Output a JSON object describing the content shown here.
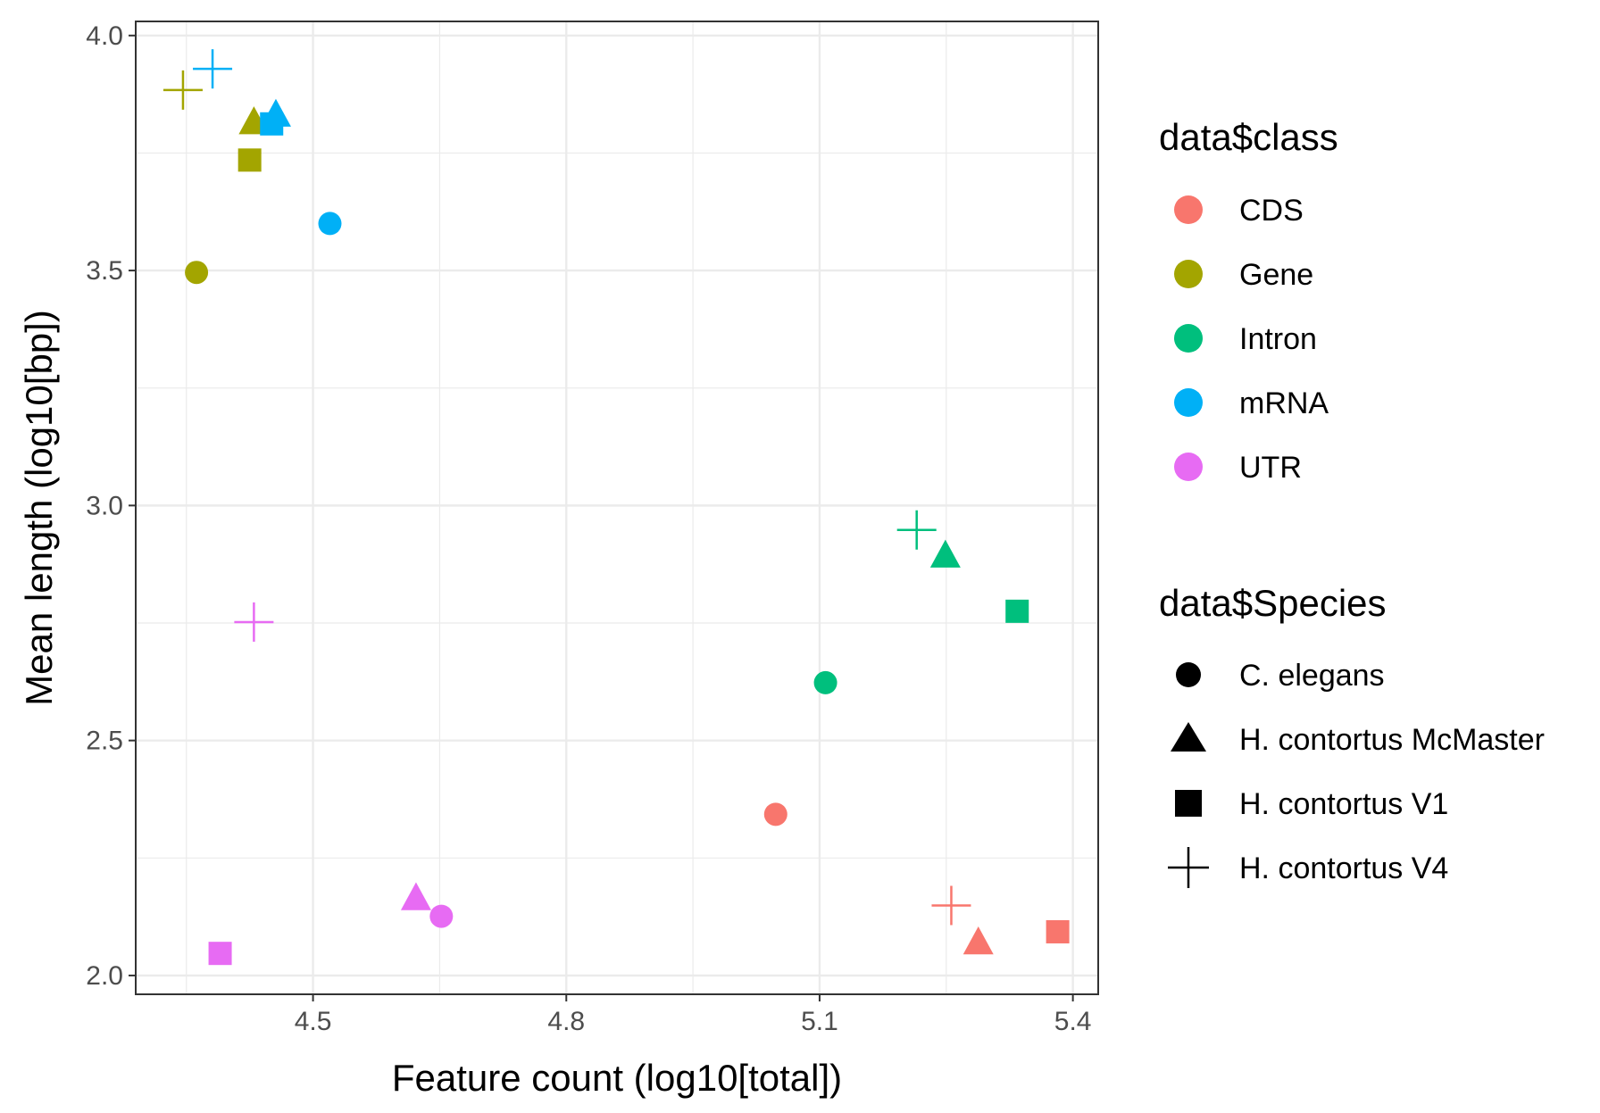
{
  "chart_data": {
    "type": "scatter",
    "xlabel": "Feature count (log10[total])",
    "ylabel": "Mean length (log10[bp])",
    "xlim": [
      4.29,
      5.43
    ],
    "ylim": [
      1.96,
      4.03
    ],
    "xticks": [
      4.5,
      4.8,
      5.1,
      5.4
    ],
    "xtick_labels": [
      "4.5",
      "4.8",
      "5.1",
      "5.4"
    ],
    "yticks": [
      2.0,
      2.5,
      3.0,
      3.5,
      4.0
    ],
    "ytick_labels": [
      "2.0",
      "2.5",
      "3.0",
      "3.5",
      "4.0"
    ],
    "grid": true,
    "legend_position": "right",
    "color_legend": {
      "title": "data$class",
      "entries": [
        {
          "label": "CDS",
          "color": "#F8766D"
        },
        {
          "label": "Gene",
          "color": "#A3A500"
        },
        {
          "label": "Intron",
          "color": "#00BF7D"
        },
        {
          "label": "mRNA",
          "color": "#00B0F6"
        },
        {
          "label": "UTR",
          "color": "#E76BF3"
        }
      ]
    },
    "shape_legend": {
      "title": "data$Species",
      "entries": [
        {
          "label": "C. elegans",
          "shape": "circle"
        },
        {
          "label": "H. contortus McMaster",
          "shape": "triangle"
        },
        {
          "label": "H. contortus V1",
          "shape": "square"
        },
        {
          "label": "H. contortus V4",
          "shape": "plus"
        }
      ]
    },
    "points": [
      {
        "class": "CDS",
        "species": "C. elegans",
        "x": 5.048,
        "y": 2.343
      },
      {
        "class": "CDS",
        "species": "H. contortus McMaster",
        "x": 5.288,
        "y": 2.069
      },
      {
        "class": "CDS",
        "species": "H. contortus V1",
        "x": 5.382,
        "y": 2.093
      },
      {
        "class": "CDS",
        "species": "H. contortus V4",
        "x": 5.256,
        "y": 2.149
      },
      {
        "class": "Gene",
        "species": "C. elegans",
        "x": 4.362,
        "y": 3.496
      },
      {
        "class": "Gene",
        "species": "H. contortus McMaster",
        "x": 4.43,
        "y": 3.814
      },
      {
        "class": "Gene",
        "species": "H. contortus V1",
        "x": 4.425,
        "y": 3.735
      },
      {
        "class": "Gene",
        "species": "H. contortus V4",
        "x": 4.346,
        "y": 3.884
      },
      {
        "class": "Intron",
        "species": "C. elegans",
        "x": 5.107,
        "y": 2.623
      },
      {
        "class": "Intron",
        "species": "H. contortus McMaster",
        "x": 5.249,
        "y": 2.892
      },
      {
        "class": "Intron",
        "species": "H. contortus V1",
        "x": 5.334,
        "y": 2.775
      },
      {
        "class": "Intron",
        "species": "H. contortus V4",
        "x": 5.215,
        "y": 2.948
      },
      {
        "class": "mRNA",
        "species": "C. elegans",
        "x": 4.52,
        "y": 3.6
      },
      {
        "class": "mRNA",
        "species": "H. contortus McMaster",
        "x": 4.456,
        "y": 3.83
      },
      {
        "class": "mRNA",
        "species": "H. contortus V1",
        "x": 4.451,
        "y": 3.812
      },
      {
        "class": "mRNA",
        "species": "H. contortus V4",
        "x": 4.381,
        "y": 3.929
      },
      {
        "class": "UTR",
        "species": "C. elegans",
        "x": 4.652,
        "y": 2.126
      },
      {
        "class": "UTR",
        "species": "H. contortus McMaster",
        "x": 4.622,
        "y": 2.163
      },
      {
        "class": "UTR",
        "species": "H. contortus V1",
        "x": 4.39,
        "y": 2.047
      },
      {
        "class": "UTR",
        "species": "H. contortus V4",
        "x": 4.43,
        "y": 2.752
      }
    ]
  }
}
